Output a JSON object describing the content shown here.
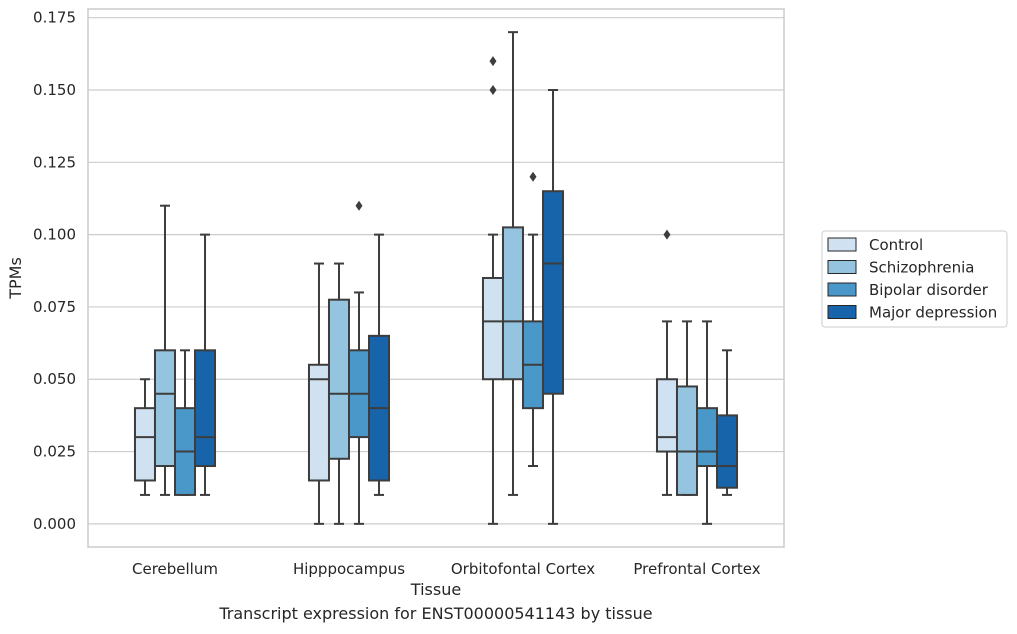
{
  "caption": "Transcript expression for ENST00000541143 by tissue",
  "chart_data": {
    "type": "box",
    "xlabel": "Tissue",
    "ylabel": "TPMs",
    "ylim": [
      -0.008,
      0.178
    ],
    "yticks": [
      "0.000",
      "0.025",
      "0.050",
      "0.075",
      "0.100",
      "0.125",
      "0.150",
      "0.175"
    ],
    "ytick_values": [
      0,
      0.025,
      0.05,
      0.075,
      0.1,
      0.125,
      0.15,
      0.175
    ],
    "grid": true,
    "legend_position": "right",
    "categories": [
      "Cerebellum",
      "Hipppocampus",
      "Orbitofontal Cortex",
      "Prefrontal Cortex"
    ],
    "series": [
      {
        "name": "Control",
        "color": "#d0e1f2",
        "boxes": [
          {
            "whislo": 0.01,
            "q1": 0.015,
            "med": 0.03,
            "q3": 0.04,
            "whishi": 0.05,
            "fliers": []
          },
          {
            "whislo": 0.0,
            "q1": 0.015,
            "med": 0.05,
            "q3": 0.055,
            "whishi": 0.09,
            "fliers": []
          },
          {
            "whislo": 0.0,
            "q1": 0.05,
            "med": 0.07,
            "q3": 0.085,
            "whishi": 0.1,
            "fliers": [
              0.15,
              0.16
            ]
          },
          {
            "whislo": 0.01,
            "q1": 0.025,
            "med": 0.03,
            "q3": 0.05,
            "whishi": 0.07,
            "fliers": [
              0.1
            ]
          }
        ]
      },
      {
        "name": "Schizophrenia",
        "color": "#94c4df",
        "boxes": [
          {
            "whislo": 0.01,
            "q1": 0.02,
            "med": 0.045,
            "q3": 0.06,
            "whishi": 0.11,
            "fliers": []
          },
          {
            "whislo": 0.0,
            "q1": 0.0225,
            "med": 0.045,
            "q3": 0.0775,
            "whishi": 0.09,
            "fliers": []
          },
          {
            "whislo": 0.01,
            "q1": 0.05,
            "med": 0.07,
            "q3": 0.1025,
            "whishi": 0.17,
            "fliers": []
          },
          {
            "whislo": 0.01,
            "q1": 0.01,
            "med": 0.025,
            "q3": 0.0475,
            "whishi": 0.07,
            "fliers": []
          }
        ]
      },
      {
        "name": "Bipolar disorder",
        "color": "#4a98c9",
        "boxes": [
          {
            "whislo": 0.01,
            "q1": 0.01,
            "med": 0.025,
            "q3": 0.04,
            "whishi": 0.06,
            "fliers": []
          },
          {
            "whislo": 0.0,
            "q1": 0.03,
            "med": 0.045,
            "q3": 0.06,
            "whishi": 0.08,
            "fliers": [
              0.11
            ]
          },
          {
            "whislo": 0.02,
            "q1": 0.04,
            "med": 0.055,
            "q3": 0.07,
            "whishi": 0.1,
            "fliers": [
              0.12
            ]
          },
          {
            "whislo": 0.0,
            "q1": 0.02,
            "med": 0.025,
            "q3": 0.04,
            "whishi": 0.07,
            "fliers": []
          }
        ]
      },
      {
        "name": "Major depression",
        "color": "#1764ab",
        "boxes": [
          {
            "whislo": 0.01,
            "q1": 0.02,
            "med": 0.03,
            "q3": 0.06,
            "whishi": 0.1,
            "fliers": []
          },
          {
            "whislo": 0.01,
            "q1": 0.015,
            "med": 0.04,
            "q3": 0.065,
            "whishi": 0.1,
            "fliers": []
          },
          {
            "whislo": 0.0,
            "q1": 0.045,
            "med": 0.09,
            "q3": 0.115,
            "whishi": 0.15,
            "fliers": []
          },
          {
            "whislo": 0.01,
            "q1": 0.0125,
            "med": 0.02,
            "q3": 0.0375,
            "whishi": 0.06,
            "fliers": []
          }
        ]
      }
    ]
  }
}
